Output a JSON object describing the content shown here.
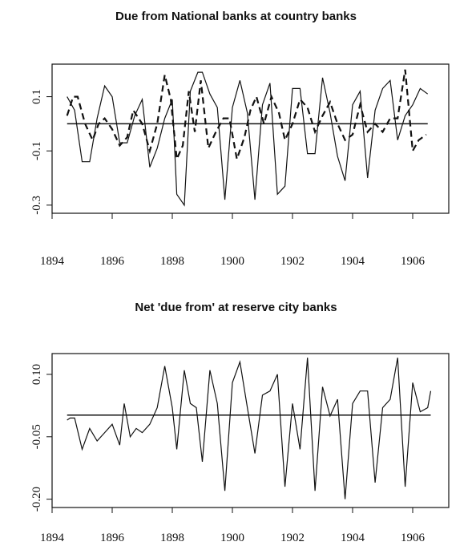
{
  "chart_data": [
    {
      "type": "line",
      "title": "Due from National banks at country banks",
      "xlabel": "",
      "ylabel": "",
      "xlim": [
        1894.0,
        1907.2
      ],
      "ylim": [
        -0.33,
        0.22
      ],
      "xticks": [
        1894,
        1896,
        1898,
        1900,
        1902,
        1904,
        1906
      ],
      "yticks": [
        0.1,
        -0.1,
        -0.3
      ],
      "ytick_labels": [
        "0.1",
        "-0.1",
        "-0.3"
      ],
      "grid": false,
      "legend": "none",
      "baseline": 0,
      "series": [
        {
          "style": "solid",
          "x": [
            1894.5,
            1894.75,
            1895.0,
            1895.25,
            1895.5,
            1895.75,
            1896.0,
            1896.25,
            1896.5,
            1896.75,
            1897.0,
            1897.25,
            1897.5,
            1897.75,
            1898.0,
            1898.15,
            1898.4,
            1898.6,
            1898.85,
            1899.0,
            1899.25,
            1899.5,
            1899.75,
            1900.0,
            1900.25,
            1900.5,
            1900.75,
            1901.0,
            1901.25,
            1901.5,
            1901.75,
            1902.0,
            1902.25,
            1902.5,
            1902.75,
            1903.0,
            1903.25,
            1903.5,
            1903.75,
            1904.0,
            1904.25,
            1904.5,
            1904.75,
            1905.0,
            1905.25,
            1905.5,
            1905.75,
            1906.0,
            1906.25,
            1906.5
          ],
          "y": [
            0.1,
            0.05,
            -0.14,
            -0.14,
            0.02,
            0.14,
            0.1,
            -0.07,
            -0.07,
            0.03,
            0.09,
            -0.16,
            -0.09,
            0.02,
            0.09,
            -0.26,
            -0.3,
            0.12,
            0.19,
            0.19,
            0.11,
            0.06,
            -0.28,
            0.06,
            0.16,
            0.04,
            -0.28,
            0.07,
            0.15,
            -0.26,
            -0.23,
            0.13,
            0.13,
            -0.11,
            -0.11,
            0.17,
            0.04,
            -0.12,
            -0.21,
            0.07,
            0.12,
            -0.2,
            0.05,
            0.13,
            0.16,
            -0.06,
            0.03,
            0.07,
            0.13,
            0.11
          ]
        },
        {
          "style": "dashed",
          "x": [
            1894.5,
            1894.7,
            1894.85,
            1895.1,
            1895.35,
            1895.55,
            1895.75,
            1896.0,
            1896.25,
            1896.5,
            1896.7,
            1897.0,
            1897.25,
            1897.5,
            1897.75,
            1897.95,
            1898.15,
            1898.35,
            1898.55,
            1898.75,
            1898.95,
            1899.2,
            1899.45,
            1899.7,
            1899.9,
            1900.15,
            1900.4,
            1900.6,
            1900.8,
            1901.05,
            1901.3,
            1901.55,
            1901.75,
            1902.0,
            1902.25,
            1902.5,
            1902.75,
            1903.0,
            1903.25,
            1903.5,
            1903.75,
            1904.0,
            1904.25,
            1904.5,
            1904.75,
            1905.0,
            1905.25,
            1905.5,
            1905.75,
            1906.0,
            1906.2,
            1906.45
          ],
          "y": [
            0.03,
            0.1,
            0.1,
            0.0,
            -0.06,
            0.0,
            0.02,
            -0.02,
            -0.08,
            -0.05,
            0.05,
            0.0,
            -0.1,
            0.0,
            0.18,
            0.09,
            -0.13,
            -0.08,
            0.12,
            -0.03,
            0.16,
            -0.09,
            -0.03,
            0.02,
            0.02,
            -0.13,
            -0.05,
            0.05,
            0.1,
            0.0,
            0.1,
            0.04,
            -0.06,
            0.0,
            0.09,
            0.06,
            -0.03,
            0.03,
            0.08,
            0.0,
            -0.06,
            -0.04,
            0.07,
            -0.03,
            0.0,
            -0.03,
            0.02,
            0.02,
            0.2,
            -0.1,
            -0.06,
            -0.04
          ]
        }
      ]
    },
    {
      "type": "line",
      "title": "Net 'due from' at reserve city banks",
      "xlabel": "",
      "ylabel": "",
      "xlim": [
        1894.0,
        1907.2
      ],
      "ylim": [
        -0.22,
        0.15
      ],
      "xticks": [
        1894,
        1896,
        1898,
        1900,
        1902,
        1904,
        1906
      ],
      "yticks": [
        0.1,
        -0.05,
        -0.2
      ],
      "ytick_labels": [
        "0.10",
        "-0.05",
        "-0.20"
      ],
      "grid": false,
      "legend": "none",
      "baseline": 0.002,
      "series": [
        {
          "style": "solid",
          "x": [
            1894.5,
            1894.6,
            1894.75,
            1895.0,
            1895.25,
            1895.5,
            1895.75,
            1896.0,
            1896.25,
            1896.4,
            1896.6,
            1896.8,
            1897.0,
            1897.25,
            1897.5,
            1897.75,
            1898.0,
            1898.15,
            1898.4,
            1898.6,
            1898.8,
            1899.0,
            1899.25,
            1899.5,
            1899.75,
            1900.0,
            1900.25,
            1900.5,
            1900.75,
            1901.0,
            1901.25,
            1901.5,
            1901.75,
            1902.0,
            1902.25,
            1902.5,
            1902.75,
            1903.0,
            1903.25,
            1903.5,
            1903.75,
            1904.0,
            1904.25,
            1904.5,
            1904.75,
            1905.0,
            1905.25,
            1905.5,
            1905.75,
            1906.0,
            1906.25,
            1906.5,
            1906.6
          ],
          "y": [
            -0.01,
            -0.005,
            -0.005,
            -0.08,
            -0.03,
            -0.06,
            -0.04,
            -0.02,
            -0.07,
            0.03,
            -0.05,
            -0.03,
            -0.04,
            -0.02,
            0.02,
            0.12,
            0.02,
            -0.08,
            0.11,
            0.03,
            0.02,
            -0.11,
            0.11,
            0.03,
            -0.18,
            0.08,
            0.13,
            0.02,
            -0.09,
            0.05,
            0.06,
            0.1,
            -0.17,
            0.03,
            -0.08,
            0.14,
            -0.18,
            0.07,
            0.0,
            0.04,
            -0.2,
            0.03,
            0.06,
            0.06,
            -0.16,
            0.02,
            0.04,
            0.14,
            -0.17,
            0.08,
            0.01,
            0.02,
            0.06
          ]
        }
      ]
    }
  ]
}
